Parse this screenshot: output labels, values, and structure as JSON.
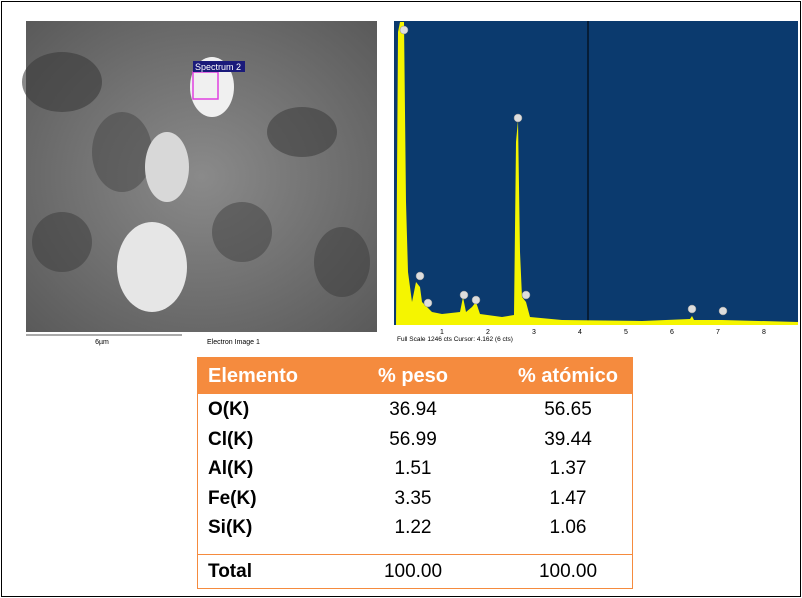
{
  "image": {
    "label": "Spectrum 2",
    "scale": "6µm",
    "caption": "Electron Image 1"
  },
  "spectrum": {
    "info": "Full Scale 1246 cts Cursor: 4.162 (6 cts)",
    "axis_labels": [
      "1",
      "2",
      "3",
      "4",
      "5",
      "6",
      "7",
      "8"
    ]
  },
  "table": {
    "header": [
      "Elemento",
      "% peso",
      "% atómico"
    ],
    "rows": [
      [
        "O(K)",
        "36.94",
        "56.65"
      ],
      [
        "Cl(K)",
        "56.99",
        "39.44"
      ],
      [
        "Al(K)",
        "1.51",
        "1.37"
      ],
      [
        "Fe(K)",
        "3.35",
        "1.47"
      ],
      [
        "Si(K)",
        "1.22",
        "1.06"
      ]
    ],
    "total": [
      "Total",
      "100.00",
      "100.00"
    ]
  }
}
